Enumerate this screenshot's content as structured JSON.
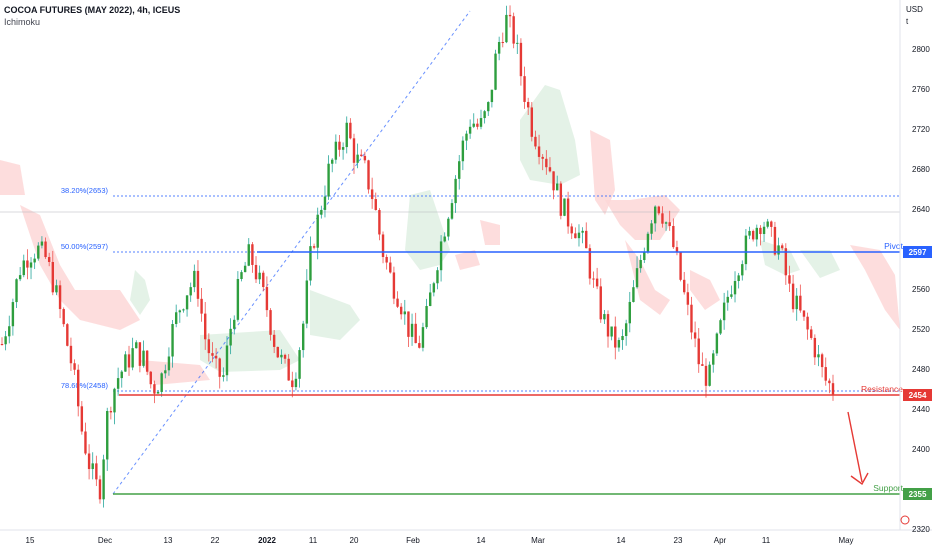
{
  "header": {
    "title": "COCOA FUTURES (MAY 2022), 4h, ICEUS",
    "indicator": "Ichimoku"
  },
  "axis": {
    "currency": "USD",
    "unit_letter": "t",
    "y_ticks": [
      "2800",
      "2760",
      "2720",
      "2680",
      "2640",
      "2597",
      "2560",
      "2520",
      "2480",
      "2454",
      "2440",
      "2400",
      "2355",
      "2320"
    ],
    "x_ticks": [
      "15",
      "Dec",
      "13",
      "22",
      "2022",
      "11",
      "20",
      "Feb",
      "14",
      "Mar",
      "14",
      "23",
      "Apr",
      "11",
      "May"
    ]
  },
  "levels": {
    "pivot": {
      "label": "Pivot",
      "value": "2597",
      "color": "#2962ff"
    },
    "resistance": {
      "label": "Resistance",
      "value": "2454",
      "color": "#e53935"
    },
    "support": {
      "label": "Support",
      "value": "2355",
      "color": "#43a047"
    }
  },
  "fib": [
    {
      "label": "38.20%(2653)",
      "value": 2653
    },
    {
      "label": "50.00%(2597)",
      "value": 2597
    },
    {
      "label": "78.60%(2458)",
      "value": 2458
    }
  ],
  "chart_data": {
    "type": "candlestick",
    "title": "COCOA FUTURES (MAY 2022), 4h, ICEUS",
    "ylabel": "USD",
    "ylim": [
      2306,
      2850
    ],
    "x_ticks": [
      "15",
      "Dec",
      "13",
      "22",
      "2022",
      "11",
      "20",
      "Feb",
      "14",
      "Mar",
      "14",
      "23",
      "Apr",
      "11",
      "May"
    ],
    "close_path": [
      2505,
      2540,
      2580,
      2595,
      2600,
      2590,
      2560,
      2520,
      2480,
      2420,
      2380,
      2355,
      2440,
      2470,
      2485,
      2500,
      2490,
      2460,
      2470,
      2510,
      2540,
      2560,
      2570,
      2510,
      2480,
      2470,
      2530,
      2570,
      2595,
      2570,
      2540,
      2500,
      2480,
      2470,
      2520,
      2600,
      2640,
      2680,
      2700,
      2720,
      2690,
      2680,
      2650,
      2600,
      2570,
      2550,
      2520,
      2500,
      2530,
      2580,
      2620,
      2660,
      2700,
      2730,
      2720,
      2740,
      2800,
      2830,
      2810,
      2760,
      2720,
      2700,
      2680,
      2650,
      2630,
      2620,
      2600,
      2560,
      2530,
      2510,
      2500,
      2540,
      2580,
      2620,
      2650,
      2630,
      2600,
      2560,
      2520,
      2480,
      2470,
      2510,
      2550,
      2580,
      2600,
      2620,
      2630,
      2610,
      2600,
      2560,
      2540,
      2520,
      2500,
      2470,
      2460
    ],
    "ichimoku_cloud": "shown",
    "annotations": [
      "Pivot",
      "Resistance",
      "Support"
    ],
    "projection": "bearish arrow from Resistance toward Support"
  }
}
